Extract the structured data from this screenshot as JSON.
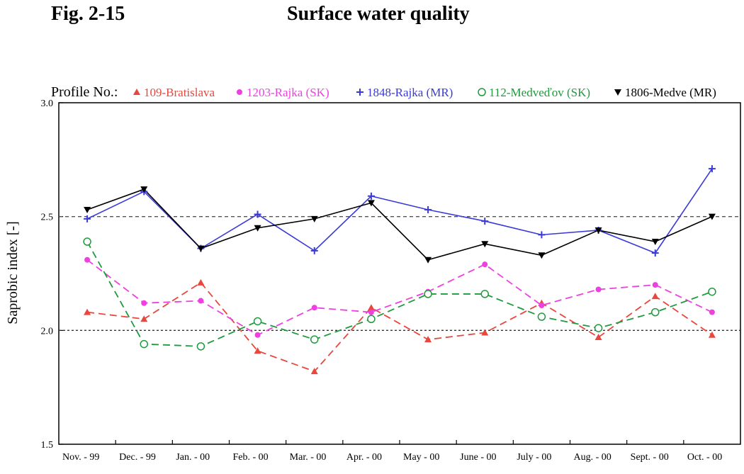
{
  "figure": {
    "number": "Fig. 2-15",
    "title": "Surface water quality"
  },
  "chart_data": {
    "type": "line",
    "legend_title": "Profile No.:",
    "ylabel": "Saprobic index  [-]",
    "xlabel": "",
    "ylim": [
      1.5,
      3.0
    ],
    "yticks": [
      "1.5",
      "2.0",
      "2.5",
      "3.0"
    ],
    "categories": [
      "Nov. - 99",
      "Dec. - 99",
      "Jan. - 00",
      "Feb. - 00",
      "Mar. - 00",
      "Apr. - 00",
      "May - 00",
      "June - 00",
      "July - 00",
      "Aug. - 00",
      "Sept. - 00",
      "Oct. - 00"
    ],
    "reference_lines": [
      2.0,
      2.5
    ],
    "grid": false,
    "legend_position": "top",
    "series": [
      {
        "name": "109-Bratislava",
        "color": "#e8473d",
        "marker": "triangle-up",
        "dash": "dashed",
        "values": [
          2.08,
          2.05,
          2.21,
          1.91,
          1.82,
          2.1,
          1.96,
          1.99,
          2.12,
          1.97,
          2.15,
          1.98
        ]
      },
      {
        "name": "1203-Rajka (SK)",
        "color": "#ee3fe0",
        "marker": "filled-circle",
        "dash": "dashed",
        "values": [
          2.31,
          2.12,
          2.13,
          1.98,
          2.1,
          2.08,
          2.17,
          2.29,
          2.11,
          2.18,
          2.2,
          2.08
        ]
      },
      {
        "name": "1848-Rajka (MR)",
        "color": "#3a3ad8",
        "marker": "plus",
        "dash": "solid",
        "values": [
          2.49,
          2.61,
          2.36,
          2.51,
          2.35,
          2.59,
          2.53,
          2.48,
          2.42,
          2.44,
          2.34,
          2.71
        ]
      },
      {
        "name": "112-Medveďov (SK)",
        "color": "#1f9a3d",
        "marker": "open-circle",
        "dash": "dashed",
        "values": [
          2.39,
          1.94,
          1.93,
          2.04,
          1.96,
          2.05,
          2.16,
          2.16,
          2.06,
          2.01,
          2.08,
          2.17
        ]
      },
      {
        "name": "1806-Medve (MR)",
        "color": "#000000",
        "marker": "triangle-down",
        "dash": "solid",
        "values": [
          2.53,
          2.62,
          2.36,
          2.45,
          2.49,
          2.56,
          2.31,
          2.38,
          2.33,
          2.44,
          2.39,
          2.5
        ]
      }
    ]
  }
}
